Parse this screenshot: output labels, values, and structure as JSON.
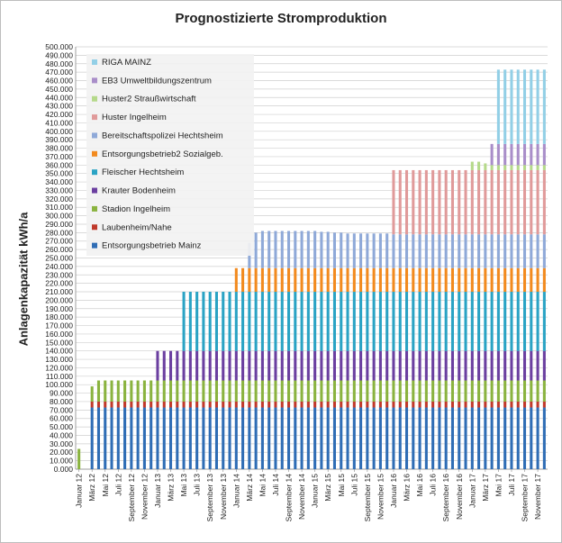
{
  "chart_data": {
    "type": "bar",
    "stacked": true,
    "title": "Prognostizierte Stromproduktion",
    "ylabel": "Anlagenkapazität kWh/a",
    "xlabel": "",
    "ylim": [
      0,
      500000
    ],
    "y_ticks": [
      "0.000",
      "10.000",
      "20.000",
      "30.000",
      "40.000",
      "50.000",
      "60.000",
      "70.000",
      "80.000",
      "90.000",
      "100.000",
      "110.000",
      "120.000",
      "130.000",
      "140.000",
      "150.000",
      "160.000",
      "170.000",
      "180.000",
      "190.000",
      "200.000",
      "210.000",
      "220.000",
      "230.000",
      "240.000",
      "250.000",
      "260.000",
      "270.000",
      "280.000",
      "290.000",
      "300.000",
      "310.000",
      "320.000",
      "330.000",
      "340.000",
      "350.000",
      "360.000",
      "370.000",
      "380.000",
      "390.000",
      "400.000",
      "410.000",
      "420.000",
      "430.000",
      "440.000",
      "450.000",
      "460.000",
      "470.000",
      "480.000",
      "490.000",
      "500.000"
    ],
    "x_tick_labels": [
      "Januar 12",
      "März 12",
      "Mai 12",
      "Juli 12",
      "September 12",
      "November 12",
      "Januar 13",
      "März 13",
      "Mai 13",
      "Juli 13",
      "September 13",
      "November 13",
      "Januar 14",
      "März 14",
      "Mai 14",
      "Juli 14",
      "September 14",
      "November 14",
      "Januar 15",
      "März 15",
      "Mai 15",
      "Juli 15",
      "September 15",
      "November 15",
      "Januar 16",
      "März 16",
      "Mai 16",
      "Juli 16",
      "September 16",
      "November 16",
      "Januar 17",
      "März 17",
      "Mai 17",
      "Juli 17",
      "September 17",
      "November 17"
    ],
    "months": 72,
    "grid": true,
    "legend_position": "top-left",
    "series": [
      {
        "name": "Entsorgungsbetrieb Mainz",
        "color": "#2f6db5",
        "values": [
          0,
          0,
          73000,
          73000,
          73000,
          73000,
          73000,
          73000,
          73000,
          73000,
          73000,
          73000,
          73000,
          73000,
          73000,
          73000,
          73000,
          73000,
          73000,
          73000,
          73000,
          73000,
          73000,
          73000,
          73000,
          73000,
          73000,
          73000,
          73000,
          73000,
          73000,
          73000,
          73000,
          73000,
          73000,
          73000,
          73000,
          73000,
          73000,
          73000,
          73000,
          73000,
          73000,
          73000,
          73000,
          73000,
          73000,
          73000,
          73000,
          73000,
          73000,
          73000,
          73000,
          73000,
          73000,
          73000,
          73000,
          73000,
          73000,
          73000,
          73000,
          73000,
          73000,
          73000,
          73000,
          73000,
          73000,
          73000,
          73000,
          73000,
          73000,
          73000
        ]
      },
      {
        "name": "Laubenheim/Nahe",
        "color": "#c0392b",
        "values": [
          0,
          0,
          7000,
          7000,
          7000,
          7000,
          7000,
          7000,
          7000,
          7000,
          7000,
          7000,
          7000,
          7000,
          7000,
          7000,
          7000,
          7000,
          7000,
          7000,
          7000,
          7000,
          7000,
          7000,
          7000,
          7000,
          7000,
          7000,
          7000,
          7000,
          7000,
          7000,
          7000,
          7000,
          7000,
          7000,
          7000,
          7000,
          7000,
          7000,
          7000,
          7000,
          7000,
          7000,
          7000,
          7000,
          7000,
          7000,
          7000,
          7000,
          7000,
          7000,
          7000,
          7000,
          7000,
          7000,
          7000,
          7000,
          7000,
          7000,
          7000,
          7000,
          7000,
          7000,
          7000,
          7000,
          7000,
          7000,
          7000,
          7000,
          7000,
          7000
        ]
      },
      {
        "name": "Stadion Ingelheim",
        "color": "#8ab33f",
        "values": [
          24000,
          0,
          18000,
          25000,
          25000,
          25000,
          25000,
          25000,
          25000,
          25000,
          25000,
          25000,
          25000,
          25000,
          25000,
          25000,
          25000,
          25000,
          25000,
          25000,
          25000,
          25000,
          25000,
          25000,
          25000,
          25000,
          25000,
          25000,
          25000,
          25000,
          25000,
          25000,
          25000,
          25000,
          25000,
          25000,
          25000,
          25000,
          25000,
          25000,
          25000,
          25000,
          25000,
          25000,
          25000,
          25000,
          25000,
          25000,
          25000,
          25000,
          25000,
          25000,
          25000,
          25000,
          25000,
          25000,
          25000,
          25000,
          25000,
          25000,
          25000,
          25000,
          25000,
          25000,
          25000,
          25000,
          25000,
          25000,
          25000,
          25000,
          25000,
          25000
        ]
      },
      {
        "name": "Krauter Bodenheim",
        "color": "#6b3fa0",
        "values": [
          0,
          0,
          0,
          0,
          0,
          0,
          0,
          0,
          0,
          0,
          0,
          0,
          35000,
          35000,
          35000,
          35000,
          35000,
          35000,
          35000,
          35000,
          35000,
          35000,
          35000,
          35000,
          35000,
          35000,
          35000,
          35000,
          35000,
          35000,
          35000,
          35000,
          35000,
          35000,
          35000,
          35000,
          35000,
          35000,
          35000,
          35000,
          35000,
          35000,
          35000,
          35000,
          35000,
          35000,
          35000,
          35000,
          35000,
          35000,
          35000,
          35000,
          35000,
          35000,
          35000,
          35000,
          35000,
          35000,
          35000,
          35000,
          35000,
          35000,
          35000,
          35000,
          35000,
          35000,
          35000,
          35000,
          35000,
          35000,
          35000,
          35000
        ]
      },
      {
        "name": "Fleischer Hechtsheim",
        "color": "#2aa3c4",
        "values": [
          0,
          0,
          0,
          0,
          0,
          0,
          0,
          0,
          0,
          0,
          0,
          0,
          0,
          0,
          0,
          0,
          70000,
          70000,
          70000,
          70000,
          70000,
          70000,
          70000,
          70000,
          70000,
          70000,
          70000,
          70000,
          70000,
          70000,
          70000,
          70000,
          70000,
          70000,
          70000,
          70000,
          70000,
          70000,
          70000,
          70000,
          70000,
          70000,
          70000,
          70000,
          70000,
          70000,
          70000,
          70000,
          70000,
          70000,
          70000,
          70000,
          70000,
          70000,
          70000,
          70000,
          70000,
          70000,
          70000,
          70000,
          70000,
          70000,
          70000,
          70000,
          70000,
          70000,
          70000,
          70000,
          70000,
          70000,
          70000,
          70000
        ]
      },
      {
        "name": "Entsorgungsbetrieb2 Sozialgeb.",
        "color": "#f28a1e",
        "values": [
          0,
          0,
          0,
          0,
          0,
          0,
          0,
          0,
          0,
          0,
          0,
          0,
          0,
          0,
          0,
          0,
          0,
          0,
          0,
          0,
          0,
          0,
          0,
          0,
          28000,
          28000,
          28000,
          28000,
          28000,
          28000,
          28000,
          28000,
          28000,
          28000,
          28000,
          28000,
          28000,
          28000,
          28000,
          28000,
          28000,
          28000,
          28000,
          28000,
          28000,
          28000,
          28000,
          28000,
          28000,
          28000,
          28000,
          28000,
          28000,
          28000,
          28000,
          28000,
          28000,
          28000,
          28000,
          28000,
          28000,
          28000,
          28000,
          28000,
          28000,
          28000,
          28000,
          28000,
          28000,
          28000,
          28000,
          28000
        ]
      },
      {
        "name": "Bereitschaftspolizei Hechtsheim",
        "color": "#8fa9d8",
        "values": [
          0,
          0,
          0,
          0,
          0,
          0,
          0,
          0,
          0,
          0,
          0,
          0,
          0,
          0,
          0,
          0,
          0,
          0,
          0,
          0,
          0,
          0,
          0,
          0,
          0,
          0,
          30000,
          42000,
          44000,
          44000,
          44000,
          44000,
          44000,
          44000,
          44000,
          44000,
          44000,
          43000,
          43000,
          42000,
          42000,
          41000,
          41000,
          41000,
          41000,
          41000,
          41000,
          41000,
          40000,
          40000,
          40000,
          40000,
          40000,
          40000,
          40000,
          40000,
          40000,
          40000,
          40000,
          40000,
          40000,
          40000,
          40000,
          40000,
          40000,
          40000,
          40000,
          40000,
          40000,
          40000,
          40000,
          40000
        ]
      },
      {
        "name": "Huster Ingelheim",
        "color": "#e09a9a",
        "values": [
          0,
          0,
          0,
          0,
          0,
          0,
          0,
          0,
          0,
          0,
          0,
          0,
          0,
          0,
          0,
          0,
          0,
          0,
          0,
          0,
          0,
          0,
          0,
          0,
          0,
          0,
          0,
          0,
          0,
          0,
          0,
          0,
          0,
          0,
          0,
          0,
          0,
          0,
          0,
          0,
          0,
          0,
          0,
          0,
          0,
          0,
          0,
          0,
          76000,
          76000,
          76000,
          76000,
          76000,
          76000,
          76000,
          76000,
          76000,
          76000,
          76000,
          76000,
          76000,
          76000,
          76000,
          76000,
          76000,
          76000,
          76000,
          76000,
          76000,
          76000,
          76000,
          76000
        ]
      },
      {
        "name": "Huster2 Straußwirtschaft",
        "color": "#b5d98a",
        "values": [
          0,
          0,
          0,
          0,
          0,
          0,
          0,
          0,
          0,
          0,
          0,
          0,
          0,
          0,
          0,
          0,
          0,
          0,
          0,
          0,
          0,
          0,
          0,
          0,
          0,
          0,
          0,
          0,
          0,
          0,
          0,
          0,
          0,
          0,
          0,
          0,
          0,
          0,
          0,
          0,
          0,
          0,
          0,
          0,
          0,
          0,
          0,
          0,
          0,
          0,
          0,
          0,
          0,
          0,
          0,
          0,
          0,
          0,
          0,
          0,
          10000,
          10000,
          8000,
          6000,
          6000,
          6000,
          6000,
          6000,
          6000,
          6000,
          6000,
          6000
        ]
      },
      {
        "name": "EB3 Umweltbildungszentrum",
        "color": "#a98ec9",
        "values": [
          0,
          0,
          0,
          0,
          0,
          0,
          0,
          0,
          0,
          0,
          0,
          0,
          0,
          0,
          0,
          0,
          0,
          0,
          0,
          0,
          0,
          0,
          0,
          0,
          0,
          0,
          0,
          0,
          0,
          0,
          0,
          0,
          0,
          0,
          0,
          0,
          0,
          0,
          0,
          0,
          0,
          0,
          0,
          0,
          0,
          0,
          0,
          0,
          0,
          0,
          0,
          0,
          0,
          0,
          0,
          0,
          0,
          0,
          0,
          0,
          0,
          0,
          0,
          25000,
          25000,
          25000,
          25000,
          25000,
          25000,
          25000,
          25000,
          25000
        ]
      },
      {
        "name": "RIGA MAINZ",
        "color": "#92cfe6",
        "values": [
          0,
          0,
          0,
          0,
          0,
          0,
          0,
          0,
          0,
          0,
          0,
          0,
          0,
          0,
          0,
          0,
          0,
          0,
          0,
          0,
          0,
          0,
          0,
          0,
          0,
          0,
          0,
          0,
          0,
          0,
          0,
          0,
          0,
          0,
          0,
          0,
          0,
          0,
          0,
          0,
          0,
          0,
          0,
          0,
          0,
          0,
          0,
          0,
          0,
          0,
          0,
          0,
          0,
          0,
          0,
          0,
          0,
          0,
          0,
          0,
          0,
          0,
          0,
          0,
          88000,
          88000,
          88000,
          88000,
          88000,
          88000,
          88000,
          88000
        ]
      }
    ]
  }
}
